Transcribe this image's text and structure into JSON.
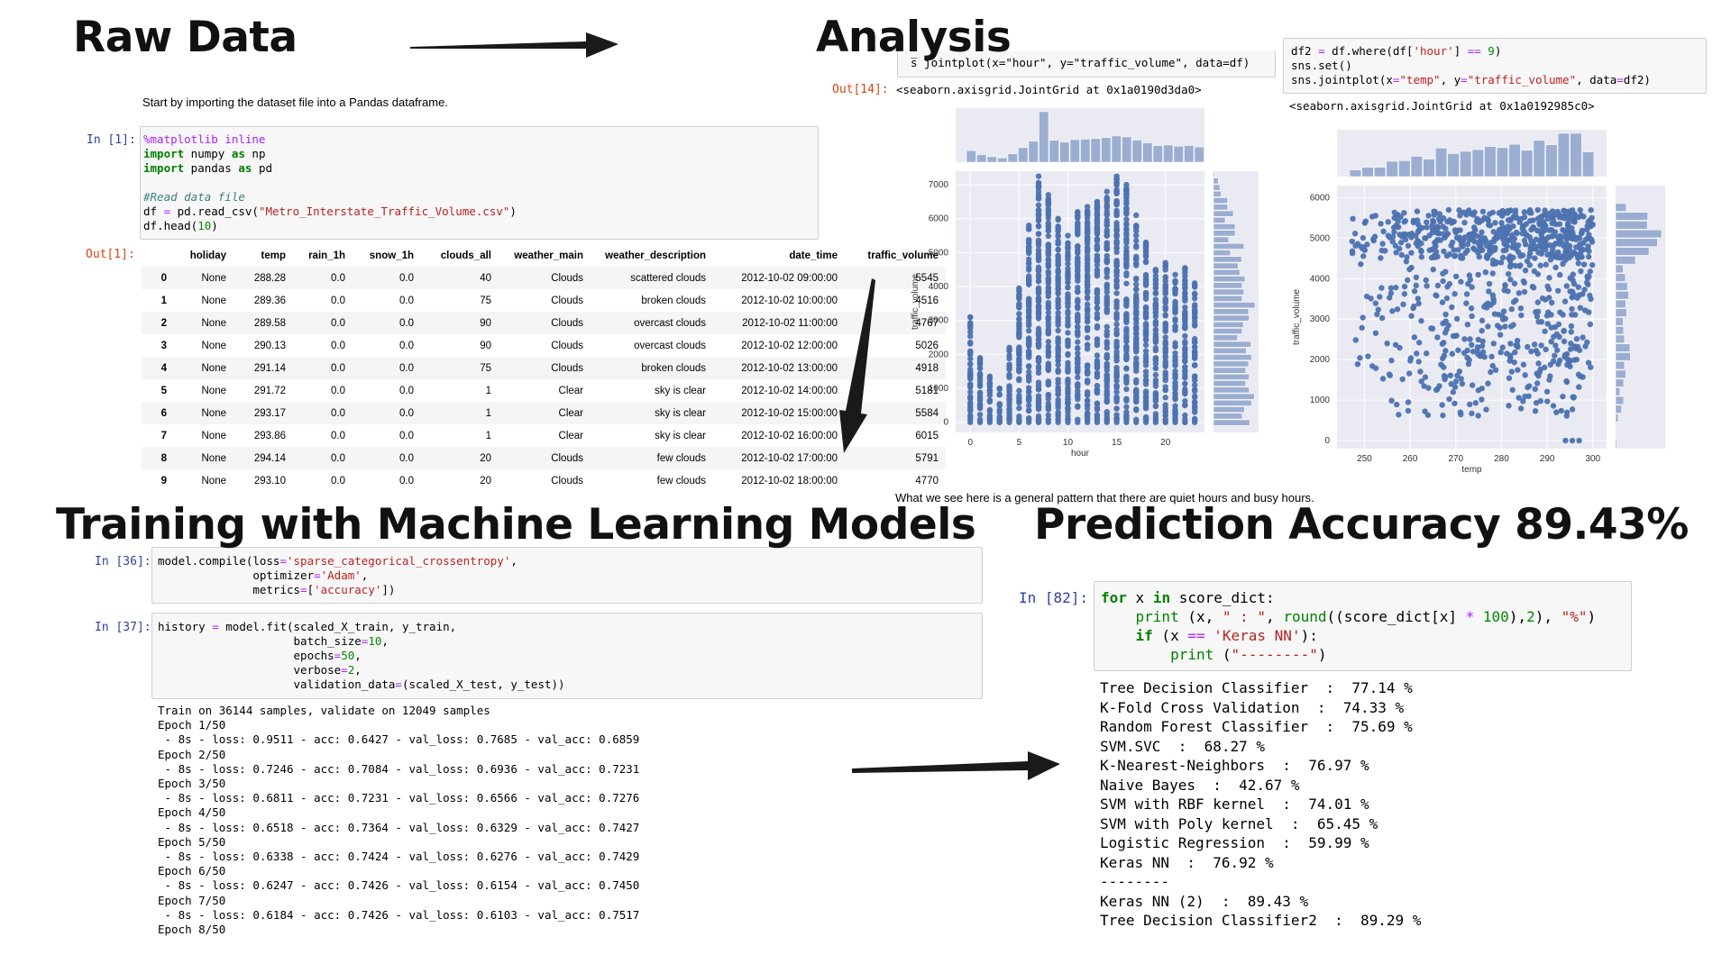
{
  "headings": {
    "raw_data": "Raw Data",
    "analysis": "Analysis",
    "training": "Training with Machine Learning Models",
    "prediction": "Prediction Accuracy 89.43%"
  },
  "raw": {
    "intro": "Start by importing the dataset file into a Pandas dataframe.",
    "in_prompt": "In [1]:",
    "out_prompt": "Out[1]:",
    "code_lines": [
      "%matplotlib inline",
      "import numpy as np",
      "import pandas as pd",
      "",
      "#Read data file",
      "df = pd.read_csv(\"Metro_Interstate_Traffic_Volume.csv\")",
      "df.head(10)"
    ],
    "columns": [
      "",
      "holiday",
      "temp",
      "rain_1h",
      "snow_1h",
      "clouds_all",
      "weather_main",
      "weather_description",
      "date_time",
      "traffic_volume"
    ],
    "rows": [
      [
        "0",
        "None",
        "288.28",
        "0.0",
        "0.0",
        "40",
        "Clouds",
        "scattered clouds",
        "2012-10-02 09:00:00",
        "5545"
      ],
      [
        "1",
        "None",
        "289.36",
        "0.0",
        "0.0",
        "75",
        "Clouds",
        "broken clouds",
        "2012-10-02 10:00:00",
        "4516"
      ],
      [
        "2",
        "None",
        "289.58",
        "0.0",
        "0.0",
        "90",
        "Clouds",
        "overcast clouds",
        "2012-10-02 11:00:00",
        "4767"
      ],
      [
        "3",
        "None",
        "290.13",
        "0.0",
        "0.0",
        "90",
        "Clouds",
        "overcast clouds",
        "2012-10-02 12:00:00",
        "5026"
      ],
      [
        "4",
        "None",
        "291.14",
        "0.0",
        "0.0",
        "75",
        "Clouds",
        "broken clouds",
        "2012-10-02 13:00:00",
        "4918"
      ],
      [
        "5",
        "None",
        "291.72",
        "0.0",
        "0.0",
        "1",
        "Clear",
        "sky is clear",
        "2012-10-02 14:00:00",
        "5181"
      ],
      [
        "6",
        "None",
        "293.17",
        "0.0",
        "0.0",
        "1",
        "Clear",
        "sky is clear",
        "2012-10-02 15:00:00",
        "5584"
      ],
      [
        "7",
        "None",
        "293.86",
        "0.0",
        "0.0",
        "1",
        "Clear",
        "sky is clear",
        "2012-10-02 16:00:00",
        "6015"
      ],
      [
        "8",
        "None",
        "294.14",
        "0.0",
        "0.0",
        "20",
        "Clouds",
        "few clouds",
        "2012-10-02 17:00:00",
        "5791"
      ],
      [
        "9",
        "None",
        "293.10",
        "0.0",
        "0.0",
        "20",
        "Clouds",
        "few clouds",
        "2012-10-02 18:00:00",
        "4770"
      ]
    ]
  },
  "analysis": {
    "cell1_code": "s̅ ̅jointplot(x=\"hour\", y=\"traffic_volume\", data=df)",
    "cell1_out_prompt": "Out[14]:",
    "cell1_out": "<seaborn.axisgrid.JointGrid at 0x1a0190d3da0>",
    "cell2_code_lines": [
      "df2 = df.where(df['hour'] == 9)",
      "sns.set()",
      "sns.jointplot(x=\"temp\", y=\"traffic_volume\", data=df2)"
    ],
    "cell2_out": "<seaborn.axisgrid.JointGrid at 0x1a0192985c0>",
    "caption": "What we see here is a general pattern that there are quiet hours and busy hours."
  },
  "chart_data": [
    {
      "type": "scatter",
      "title": "",
      "xlabel": "hour",
      "ylabel": "traffic_volume",
      "xlim": [
        -1.5,
        24
      ],
      "ylim": [
        -300,
        7400
      ],
      "xticks": [
        0,
        5,
        10,
        15,
        20
      ],
      "yticks": [
        0,
        1000,
        2000,
        3000,
        4000,
        5000,
        6000,
        7000
      ],
      "grid": true,
      "marginals": true,
      "color": "#4c72b0",
      "hour_ranges": [
        {
          "hour": 0,
          "min": 0,
          "max": 3100
        },
        {
          "hour": 1,
          "min": 0,
          "max": 1900
        },
        {
          "hour": 2,
          "min": 0,
          "max": 1350
        },
        {
          "hour": 3,
          "min": 0,
          "max": 1000
        },
        {
          "hour": 4,
          "min": 0,
          "max": 2200
        },
        {
          "hour": 5,
          "min": 0,
          "max": 3950
        },
        {
          "hour": 6,
          "min": 0,
          "max": 5800
        },
        {
          "hour": 7,
          "min": 0,
          "max": 7250
        },
        {
          "hour": 8,
          "min": 0,
          "max": 6700
        },
        {
          "hour": 9,
          "min": 0,
          "max": 6000
        },
        {
          "hour": 10,
          "min": 0,
          "max": 5500
        },
        {
          "hour": 11,
          "min": 0,
          "max": 6200
        },
        {
          "hour": 12,
          "min": 0,
          "max": 6350
        },
        {
          "hour": 13,
          "min": 0,
          "max": 6500
        },
        {
          "hour": 14,
          "min": 0,
          "max": 6800
        },
        {
          "hour": 15,
          "min": 0,
          "max": 7250
        },
        {
          "hour": 16,
          "min": 0,
          "max": 7000
        },
        {
          "hour": 17,
          "min": 0,
          "max": 6100
        },
        {
          "hour": 18,
          "min": 0,
          "max": 5300
        },
        {
          "hour": 19,
          "min": 0,
          "max": 4500
        },
        {
          "hour": 20,
          "min": 0,
          "max": 4700
        },
        {
          "hour": 21,
          "min": 0,
          "max": 4350
        },
        {
          "hour": 22,
          "min": 0,
          "max": 4550
        },
        {
          "hour": 23,
          "min": 0,
          "max": 4100
        }
      ]
    },
    {
      "type": "scatter",
      "title": "",
      "xlabel": "temp",
      "ylabel": "traffic_volume",
      "xlim": [
        244,
        303
      ],
      "ylim": [
        -200,
        6300
      ],
      "xticks": [
        250,
        260,
        270,
        280,
        290,
        300
      ],
      "yticks": [
        0,
        1000,
        2000,
        3000,
        4000,
        5000,
        6000
      ],
      "grid": true,
      "marginals": true,
      "color": "#4c72b0",
      "clusters": [
        {
          "temp_range": [
            247,
            300
          ],
          "volume_range": [
            4500,
            5700
          ],
          "share": 0.55
        },
        {
          "temp_range": [
            248,
            300
          ],
          "volume_range": [
            1500,
            4500
          ],
          "share": 0.38
        },
        {
          "temp_range": [
            252,
            298
          ],
          "volume_range": [
            600,
            1500
          ],
          "share": 0.07
        }
      ],
      "outliers": [
        {
          "x": 294,
          "y": 0
        },
        {
          "x": 295.5,
          "y": 0
        },
        {
          "x": 297,
          "y": 0
        }
      ]
    }
  ],
  "training": {
    "in1": "In [36]:",
    "in1_code": [
      "model.compile(loss='sparse_categorical_crossentropy',",
      "              optimizer='Adam',",
      "              metrics=['accuracy'])"
    ],
    "in2": "In [37]:",
    "in2_code": [
      "history = model.fit(scaled_X_train, y_train,",
      "                    batch_size=10,",
      "                    epochs=50,",
      "                    verbose=2,",
      "                    validation_data=(scaled_X_test, y_test))"
    ],
    "output": [
      "Train on 36144 samples, validate on 12049 samples",
      "Epoch 1/50",
      " - 8s - loss: 0.9511 - acc: 0.6427 - val_loss: 0.7685 - val_acc: 0.6859",
      "Epoch 2/50",
      " - 8s - loss: 0.7246 - acc: 0.7084 - val_loss: 0.6936 - val_acc: 0.7231",
      "Epoch 3/50",
      " - 8s - loss: 0.6811 - acc: 0.7231 - val_loss: 0.6566 - val_acc: 0.7276",
      "Epoch 4/50",
      " - 8s - loss: 0.6518 - acc: 0.7364 - val_loss: 0.6329 - val_acc: 0.7427",
      "Epoch 5/50",
      " - 8s - loss: 0.6338 - acc: 0.7424 - val_loss: 0.6276 - val_acc: 0.7429",
      "Epoch 6/50",
      " - 8s - loss: 0.6247 - acc: 0.7426 - val_loss: 0.6154 - val_acc: 0.7450",
      "Epoch 7/50",
      " - 8s - loss: 0.6184 - acc: 0.7426 - val_loss: 0.6103 - val_acc: 0.7517",
      "Epoch 8/50"
    ]
  },
  "prediction": {
    "in_prompt": "In [82]:",
    "results": [
      "Tree Decision Classifier  :  77.14 %",
      "K-Fold Cross Validation  :  74.33 %",
      "Random Forest Classifier  :  75.69 %",
      "SVM.SVC  :  68.27 %",
      "K-Nearest-Neighbors  :  76.97 %",
      "Naive Bayes  :  42.67 %",
      "SVM with RBF kernel  :  74.01 %",
      "SVM with Poly kernel  :  65.45 %",
      "Logistic Regression  :  59.99 %",
      "Keras NN  :  76.92 %",
      "--------",
      "Keras NN (2)  :  89.43 %",
      "Tree Decision Classifier2  :  89.29 %"
    ]
  }
}
